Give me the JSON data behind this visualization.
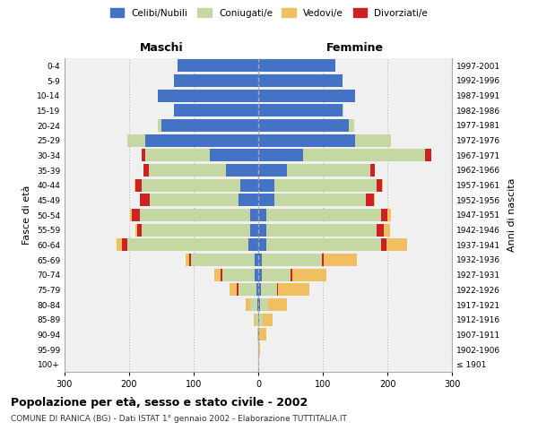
{
  "age_groups": [
    "100+",
    "95-99",
    "90-94",
    "85-89",
    "80-84",
    "75-79",
    "70-74",
    "65-69",
    "60-64",
    "55-59",
    "50-54",
    "45-49",
    "40-44",
    "35-39",
    "30-34",
    "25-29",
    "20-24",
    "15-19",
    "10-14",
    "5-9",
    "0-4"
  ],
  "birth_years": [
    "≤ 1901",
    "1902-1906",
    "1907-1911",
    "1912-1916",
    "1917-1921",
    "1922-1926",
    "1927-1931",
    "1932-1936",
    "1937-1941",
    "1942-1946",
    "1947-1951",
    "1952-1956",
    "1957-1961",
    "1962-1966",
    "1967-1971",
    "1972-1976",
    "1977-1981",
    "1982-1986",
    "1987-1991",
    "1992-1996",
    "1997-2001"
  ],
  "male_celibe": [
    0,
    0,
    0,
    0,
    1,
    3,
    5,
    6,
    15,
    12,
    12,
    30,
    28,
    50,
    75,
    175,
    150,
    130,
    155,
    130,
    125
  ],
  "male_coniugato": [
    0,
    0,
    1,
    4,
    12,
    28,
    50,
    98,
    188,
    168,
    172,
    138,
    152,
    120,
    100,
    28,
    5,
    1,
    0,
    0,
    0
  ],
  "male_vedovo": [
    0,
    0,
    1,
    3,
    6,
    12,
    10,
    6,
    8,
    2,
    2,
    0,
    2,
    0,
    0,
    0,
    0,
    0,
    0,
    0,
    0
  ],
  "male_divorziato": [
    0,
    0,
    0,
    0,
    0,
    2,
    3,
    3,
    8,
    8,
    12,
    15,
    10,
    8,
    5,
    0,
    0,
    0,
    0,
    0,
    0
  ],
  "female_celibe": [
    0,
    0,
    1,
    2,
    3,
    4,
    5,
    6,
    12,
    12,
    12,
    25,
    25,
    45,
    70,
    150,
    140,
    130,
    150,
    130,
    120
  ],
  "female_coniugato": [
    0,
    0,
    1,
    5,
    12,
    25,
    45,
    92,
    178,
    172,
    178,
    142,
    158,
    128,
    188,
    55,
    8,
    2,
    0,
    0,
    0
  ],
  "female_vedovo": [
    2,
    3,
    10,
    15,
    30,
    48,
    52,
    52,
    32,
    10,
    5,
    2,
    2,
    0,
    0,
    0,
    0,
    0,
    0,
    0,
    0
  ],
  "female_divorziato": [
    0,
    0,
    0,
    0,
    0,
    2,
    3,
    3,
    8,
    10,
    10,
    12,
    8,
    8,
    10,
    0,
    0,
    0,
    0,
    0,
    0
  ],
  "colors": {
    "celibe": "#4472C4",
    "coniugato": "#c5d8a4",
    "vedovo": "#f0c060",
    "divorziato": "#cc2222"
  },
  "title": "Popolazione per età, sesso e stato civile - 2002",
  "subtitle": "COMUNE DI RANICA (BG) - Dati ISTAT 1° gennaio 2002 - Elaborazione TUTTITALIA.IT",
  "xlabel_left": "Maschi",
  "xlabel_right": "Femmine",
  "ylabel_left": "Fasce di età",
  "ylabel_right": "Anni di nascita",
  "xlim": 300,
  "bg_color": "#ffffff",
  "plot_bg_color": "#f0f0f0",
  "grid_color": "#cccccc",
  "legend_labels": [
    "Celibi/Nubili",
    "Coniugati/e",
    "Vedovi/e",
    "Divorziati/e"
  ]
}
